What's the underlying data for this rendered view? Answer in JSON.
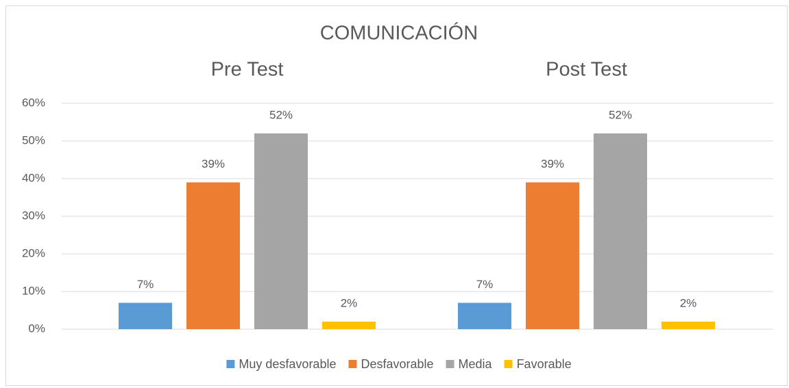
{
  "chart_data": {
    "type": "bar",
    "title": "COMUNICACIÓN",
    "categories": [
      "Pre Test",
      "Post Test"
    ],
    "series": [
      {
        "name": "Muy desfavorable",
        "color": "#5b9bd5",
        "values": [
          7,
          7
        ],
        "value_labels": [
          "7%",
          "7%"
        ]
      },
      {
        "name": "Desfavorable",
        "color": "#ed7d31",
        "values": [
          39,
          39
        ],
        "value_labels": [
          "39%",
          "39%"
        ]
      },
      {
        "name": "Media",
        "color": "#a5a5a5",
        "values": [
          52,
          52
        ],
        "value_labels": [
          "52%",
          "52%"
        ]
      },
      {
        "name": "Favorable",
        "color": "#ffc000",
        "values": [
          2,
          2
        ],
        "value_labels": [
          "2%",
          "2%"
        ]
      }
    ],
    "ylim": [
      0,
      60
    ],
    "yticks": [
      {
        "value": 0,
        "label": "0%"
      },
      {
        "value": 10,
        "label": "10%"
      },
      {
        "value": 20,
        "label": "20%"
      },
      {
        "value": 30,
        "label": "30%"
      },
      {
        "value": 40,
        "label": "40%"
      },
      {
        "value": 50,
        "label": "50%"
      },
      {
        "value": 60,
        "label": "60%"
      }
    ],
    "grid": true,
    "legend": "bottom"
  }
}
